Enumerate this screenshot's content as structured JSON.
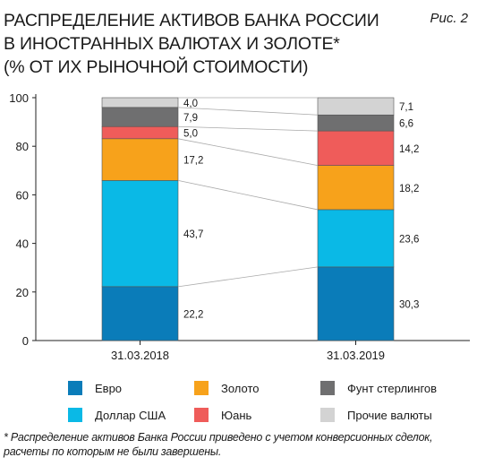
{
  "figure_label": "Рис. 2",
  "chart_data": {
    "type": "bar",
    "stacked": true,
    "title_lines": [
      "РАСПРЕДЕЛЕНИЕ АКТИВОВ БАНКА РОССИИ",
      "В ИНОСТРАННЫХ ВАЛЮТАХ И ЗОЛОТЕ*",
      "(% ОТ ИХ РЫНОЧНОЙ СТОИМОСТИ)"
    ],
    "categories": [
      "31.03.2018",
      "31.03.2019"
    ],
    "ylim": [
      0,
      100
    ],
    "yticks": [
      "0",
      "20",
      "40",
      "60",
      "80",
      "100"
    ],
    "grid": false,
    "legend_position": "bottom",
    "series": [
      {
        "name": "Евро",
        "color": "#0a7cb9",
        "values": [
          22.2,
          30.3
        ],
        "labels": [
          "22,2",
          "30,3"
        ]
      },
      {
        "name": "Доллар США",
        "color": "#0ab9e6",
        "values": [
          43.7,
          23.6
        ],
        "labels": [
          "43,7",
          "23,6"
        ]
      },
      {
        "name": "Золото",
        "color": "#f7a21b",
        "values": [
          17.2,
          18.2
        ],
        "labels": [
          "17,2",
          "18,2"
        ]
      },
      {
        "name": "Юань",
        "color": "#ef5c5a",
        "values": [
          5.0,
          14.2
        ],
        "labels": [
          "5,0",
          "14,2"
        ]
      },
      {
        "name": "Фунт стерлингов",
        "color": "#6f6f70",
        "values": [
          7.9,
          6.6
        ],
        "labels": [
          "7,9",
          "6,6"
        ]
      },
      {
        "name": "Прочие валюты",
        "color": "#d3d3d3",
        "values": [
          4.0,
          7.1
        ],
        "labels": [
          "4,0",
          "7,1"
        ]
      }
    ],
    "legend_order": [
      0,
      2,
      4,
      1,
      3,
      5
    ]
  },
  "footnote": "* Распределение активов Банка России приведено с учетом конверсионных сделок, расчеты по которым не были завершены."
}
